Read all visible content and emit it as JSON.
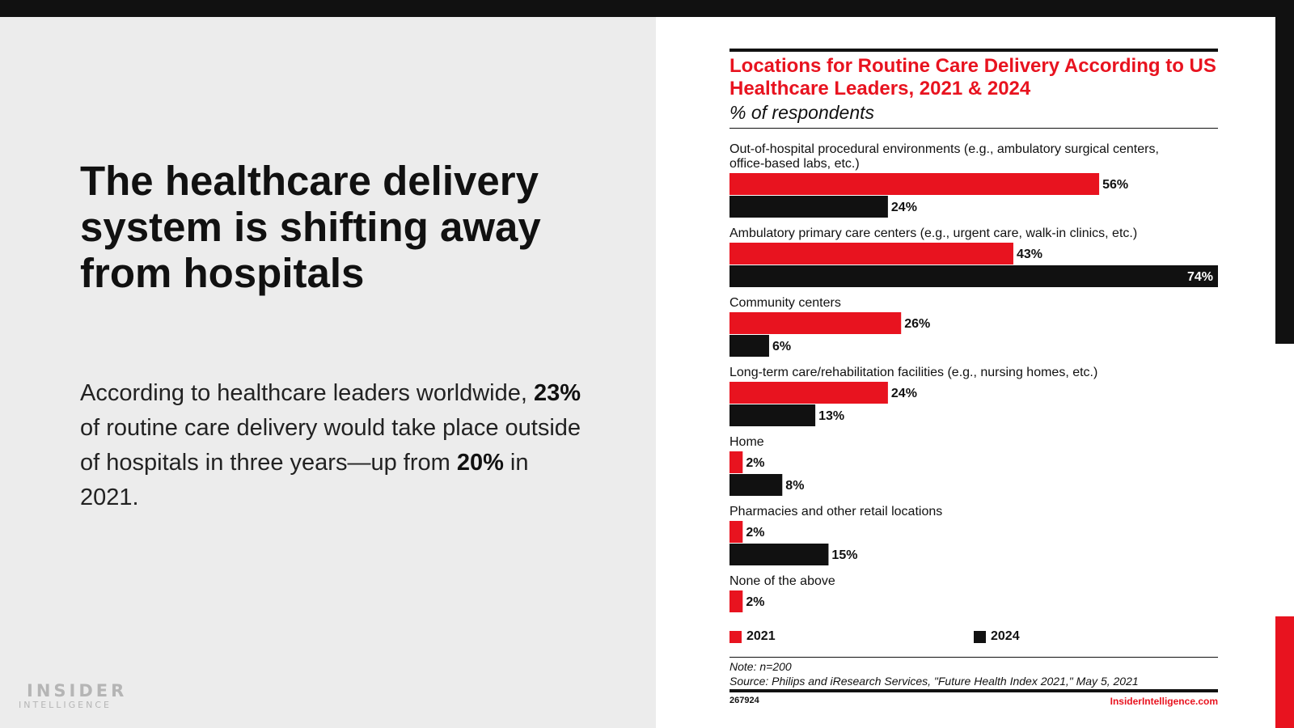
{
  "slide": {
    "headline": "The healthcare delivery system is shifting away from hospitals",
    "body": {
      "part1": "According to healthcare leaders worldwide, ",
      "bold1": "23%",
      "part2": " of routine care delivery would take place outside of hospitals in three years—up from ",
      "bold2": "20%",
      "part3": " in 2021."
    },
    "logo": {
      "line1": "INSIDER",
      "line2": "INTELLIGENCE"
    }
  },
  "colors": {
    "series_2021": "#e8131f",
    "series_2024": "#111111",
    "accent": "#e8131f"
  },
  "chart_data": {
    "type": "bar",
    "orientation": "horizontal",
    "title": "Locations for Routine Care Delivery According to US Healthcare Leaders, 2021 & 2024",
    "subtitle": "% of respondents",
    "xlim": [
      0,
      74
    ],
    "unit": "%",
    "categories": [
      [
        "Out-of-hospital procedural environments (e.g., ambulatory surgical centers,",
        "office-based labs, etc.)"
      ],
      [
        "Ambulatory primary care centers (e.g., urgent care, walk-in clinics, etc.)"
      ],
      [
        "Community centers"
      ],
      [
        "Long-term care/rehabilitation facilities (e.g., nursing homes, etc.)"
      ],
      [
        "Home"
      ],
      [
        "Pharmacies and other retail locations"
      ],
      [
        "None of the above"
      ]
    ],
    "series": [
      {
        "name": "2021",
        "values": [
          56,
          43,
          26,
          24,
          2,
          2,
          2
        ]
      },
      {
        "name": "2024",
        "values": [
          24,
          74,
          6,
          13,
          8,
          15,
          null
        ]
      }
    ],
    "legend_position": "bottom",
    "note": "Note: n=200",
    "source": "Source: Philips and iResearch Services, \"Future Health Index 2021,\" May 5, 2021",
    "chart_id": "267924",
    "site": "InsiderIntelligence.com"
  }
}
